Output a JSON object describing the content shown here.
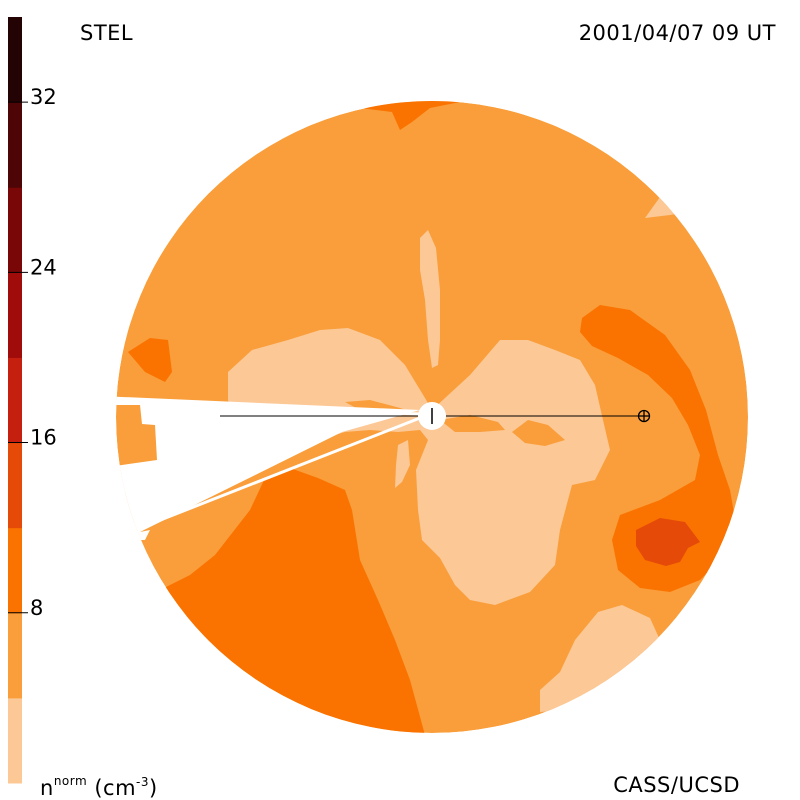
{
  "header": {
    "site": "STEL",
    "timestamp": "2001/04/07 09 UT"
  },
  "footer": {
    "units_symbol": "n",
    "units_superscript": "norm",
    "units_suffix_open": " (cm",
    "units_exponent": "-3",
    "units_suffix_close": ")",
    "credit": "CASS/UCSD"
  },
  "colorbar": {
    "ticks": [
      {
        "label": "32",
        "value": 32
      },
      {
        "label": "24",
        "value": 24
      },
      {
        "label": "16",
        "value": 16
      },
      {
        "label": "8",
        "value": 8
      }
    ],
    "range": [
      0,
      36
    ],
    "bands": [
      {
        "from": 0,
        "to": 4,
        "color": "#fcc896"
      },
      {
        "from": 4,
        "to": 8,
        "color": "#f99e3a"
      },
      {
        "from": 8,
        "to": 12,
        "color": "#fa7300"
      },
      {
        "from": 12,
        "to": 16,
        "color": "#e54a08"
      },
      {
        "from": 16,
        "to": 20,
        "color": "#c5200f"
      },
      {
        "from": 20,
        "to": 24,
        "color": "#a00c0a"
      },
      {
        "from": 24,
        "to": 28,
        "color": "#7a0707"
      },
      {
        "from": 28,
        "to": 32,
        "color": "#4e0505"
      },
      {
        "from": 32,
        "to": 36,
        "color": "#230303"
      }
    ]
  },
  "markers": {
    "sun_symbol": "sun",
    "earth_symbol": "earth"
  }
}
